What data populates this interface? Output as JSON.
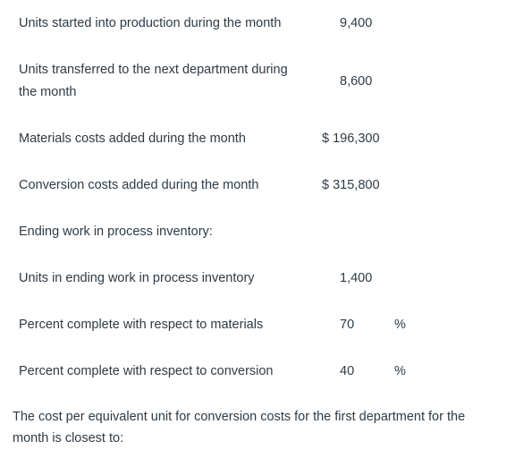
{
  "rows": [
    {
      "label": "Units started into production during the month",
      "value": "9,400"
    },
    {
      "label_line1": "Units transferred to the next department during",
      "label_line2": "the month",
      "value": "8,600"
    },
    {
      "label": "Materials costs added during the month",
      "value": "$ 196,300"
    },
    {
      "label": "Conversion costs added during the month",
      "value": "$ 315,800"
    },
    {
      "label": "Ending work in process inventory:"
    },
    {
      "label": "Units in ending work in process inventory",
      "value": "1,400"
    },
    {
      "label": "Percent complete with respect to materials",
      "value": "70",
      "unit": "%"
    },
    {
      "label": "Percent complete with respect to conversion",
      "value": "40",
      "unit": "%"
    }
  ],
  "question": {
    "line1": "The cost per equivalent unit for conversion costs for the first department for the",
    "line2": "month is closest to:"
  }
}
